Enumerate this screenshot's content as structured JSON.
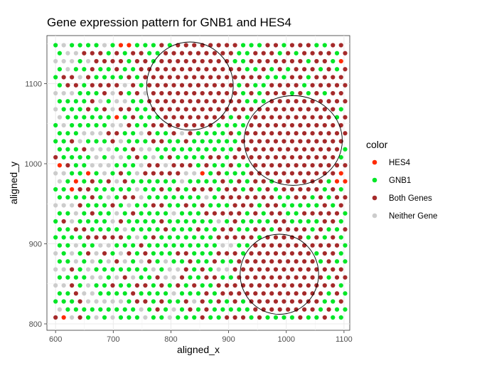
{
  "chart_data": {
    "type": "scatter",
    "title": "Gene expression pattern for GNB1 and HES4",
    "xlabel": "aligned_x",
    "ylabel": "aligned_y",
    "xlim": [
      585,
      1110
    ],
    "ylim": [
      792,
      1160
    ],
    "x_ticks": [
      600,
      700,
      800,
      900,
      1000,
      1100
    ],
    "y_ticks": [
      800,
      900,
      1000,
      1100
    ],
    "grid": true,
    "legend": {
      "title": "color",
      "position": "right",
      "entries": [
        {
          "label": "HES4",
          "color": "#ff2a00"
        },
        {
          "label": "GNB1",
          "color": "#00e626"
        },
        {
          "label": "Both Genes",
          "color": "#a52a2a"
        },
        {
          "label": "Neither Gene",
          "color": "#cccccc"
        }
      ]
    },
    "grid_layout": {
      "x_start": 600,
      "x_step": 14.14,
      "x_count": 36,
      "y_top": 1148,
      "y_step": 10.0,
      "row_count": 35,
      "odd_row_x_offset": 7.07
    },
    "regions_both_genes": [
      {
        "cx": 835,
        "cy": 1096,
        "rx": 78,
        "ry": 55
      },
      {
        "cx": 1010,
        "cy": 1030,
        "rx": 88,
        "ry": 56
      },
      {
        "cx": 990,
        "cy": 863,
        "rx": 70,
        "ry": 50
      }
    ],
    "highlight_ellipses": [
      {
        "cx": 833,
        "cy": 1097,
        "rx": 75,
        "ry": 55
      },
      {
        "cx": 1012,
        "cy": 1029,
        "rx": 85,
        "ry": 56
      },
      {
        "cx": 988,
        "cy": 862,
        "rx": 68,
        "ry": 50
      }
    ],
    "hes4_points": [
      [
        720,
        1148
      ],
      [
        1097,
        1130
      ],
      [
        700,
        1061
      ],
      [
        606,
        1000
      ],
      [
        650,
        986
      ],
      [
        848,
        986
      ],
      [
        1095,
        983
      ],
      [
        632,
        973
      ],
      [
        620,
        810
      ]
    ]
  }
}
